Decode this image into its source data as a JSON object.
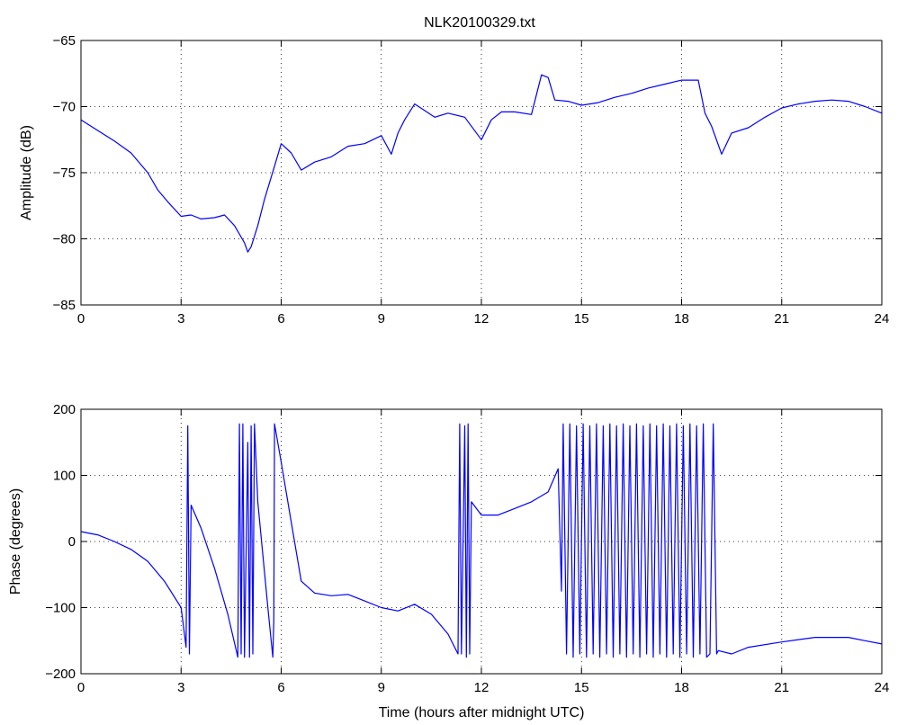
{
  "title": "NLK20100329.txt",
  "line_color": "#0000ff",
  "chart_data": [
    {
      "type": "line",
      "title": "NLK20100329.txt",
      "xlabel": "",
      "ylabel": "Amplitude (dB)",
      "xlim": [
        0,
        24
      ],
      "ylim": [
        -85,
        -65
      ],
      "xticks": [
        0,
        3,
        6,
        9,
        12,
        15,
        18,
        21,
        24
      ],
      "yticks": [
        -85,
        -80,
        -75,
        -70,
        -65
      ],
      "grid": true,
      "x": [
        0,
        0.5,
        1,
        1.5,
        2,
        2.3,
        2.6,
        3,
        3.3,
        3.6,
        4,
        4.3,
        4.6,
        4.9,
        5.0,
        5.1,
        5.3,
        5.5,
        5.8,
        6.0,
        6.3,
        6.6,
        7.0,
        7.5,
        8.0,
        8.5,
        9.0,
        9.3,
        9.5,
        9.7,
        10.0,
        10.3,
        10.6,
        11.0,
        11.5,
        12.0,
        12.3,
        12.6,
        13.0,
        13.5,
        13.8,
        14.0,
        14.2,
        14.6,
        15.0,
        15.5,
        16.0,
        16.5,
        17.0,
        17.5,
        18.0,
        18.5,
        18.7,
        18.9,
        19.2,
        19.5,
        20.0,
        20.5,
        21.0,
        21.5,
        22.0,
        22.5,
        23.0,
        23.5,
        24.0
      ],
      "y": [
        -71.0,
        -71.8,
        -72.6,
        -73.5,
        -75.0,
        -76.3,
        -77.2,
        -78.3,
        -78.2,
        -78.5,
        -78.4,
        -78.2,
        -79.0,
        -80.3,
        -81.0,
        -80.6,
        -79.0,
        -77.0,
        -74.5,
        -72.8,
        -73.5,
        -74.8,
        -74.2,
        -73.8,
        -73.0,
        -72.8,
        -72.2,
        -73.6,
        -72.0,
        -71.0,
        -69.8,
        -70.3,
        -70.8,
        -70.5,
        -70.8,
        -72.5,
        -71.0,
        -70.4,
        -70.4,
        -70.6,
        -67.6,
        -67.8,
        -69.5,
        -69.6,
        -69.9,
        -69.7,
        -69.3,
        -69.0,
        -68.6,
        -68.3,
        -68.0,
        -68.0,
        -70.5,
        -71.5,
        -73.6,
        -72.0,
        -71.6,
        -70.8,
        -70.1,
        -69.8,
        -69.6,
        -69.5,
        -69.6,
        -70.0,
        -70.5
      ]
    },
    {
      "type": "line",
      "title": "",
      "xlabel": "Time (hours after midnight UTC)",
      "ylabel": "Phase (degrees)",
      "xlim": [
        0,
        24
      ],
      "ylim": [
        -200,
        200
      ],
      "xticks": [
        0,
        3,
        6,
        9,
        12,
        15,
        18,
        21,
        24
      ],
      "yticks": [
        -200,
        -100,
        0,
        100,
        200
      ],
      "grid": true,
      "x": [
        0,
        0.5,
        1,
        1.5,
        2,
        2.5,
        3,
        3.15,
        3.2,
        3.25,
        3.3,
        3.6,
        4.0,
        4.4,
        4.7,
        4.75,
        4.8,
        4.85,
        4.9,
        5.0,
        5.05,
        5.1,
        5.15,
        5.2,
        5.3,
        5.6,
        5.75,
        5.78,
        5.8,
        6.0,
        6.3,
        6.6,
        7.0,
        7.5,
        8.0,
        8.5,
        9.0,
        9.5,
        10.0,
        10.5,
        11.0,
        11.3,
        11.35,
        11.4,
        11.5,
        11.55,
        11.6,
        11.65,
        11.7,
        12.0,
        12.5,
        13.0,
        13.5,
        14.0,
        14.3,
        14.4,
        14.45,
        14.55,
        14.65,
        14.75,
        14.85,
        14.95,
        15.05,
        15.15,
        15.25,
        15.35,
        15.45,
        15.55,
        15.65,
        15.75,
        15.85,
        15.95,
        16.05,
        16.15,
        16.25,
        16.35,
        16.45,
        16.55,
        16.65,
        16.75,
        16.85,
        16.95,
        17.05,
        17.15,
        17.25,
        17.35,
        17.45,
        17.55,
        17.65,
        17.75,
        17.85,
        17.95,
        18.05,
        18.15,
        18.25,
        18.35,
        18.45,
        18.55,
        18.65,
        18.75,
        18.85,
        18.95,
        19.05,
        19.1,
        19.5,
        20.0,
        21.0,
        22.0,
        22.5,
        23.0,
        23.5,
        24.0
      ],
      "y": [
        15,
        10,
        0,
        -12,
        -30,
        -60,
        -100,
        -160,
        175,
        -170,
        55,
        20,
        -40,
        -110,
        -175,
        178,
        -170,
        178,
        -175,
        150,
        -175,
        175,
        -170,
        178,
        60,
        -100,
        -175,
        -120,
        178,
        120,
        30,
        -60,
        -78,
        -82,
        -80,
        -90,
        -100,
        -105,
        -95,
        -110,
        -140,
        -170,
        178,
        -170,
        175,
        -175,
        178,
        -170,
        60,
        40,
        40,
        50,
        60,
        75,
        110,
        -75,
        178,
        -170,
        178,
        -175,
        175,
        -170,
        178,
        -175,
        175,
        -170,
        178,
        -175,
        175,
        -170,
        178,
        -175,
        175,
        -170,
        178,
        -175,
        175,
        -170,
        178,
        -175,
        175,
        -170,
        178,
        -175,
        175,
        -170,
        178,
        -175,
        175,
        -170,
        178,
        -175,
        175,
        -170,
        178,
        -175,
        175,
        -170,
        178,
        -175,
        -170,
        178,
        -170,
        -165,
        -170,
        -160,
        -152,
        -145,
        -145,
        -145,
        -150,
        -155
      ]
    }
  ]
}
